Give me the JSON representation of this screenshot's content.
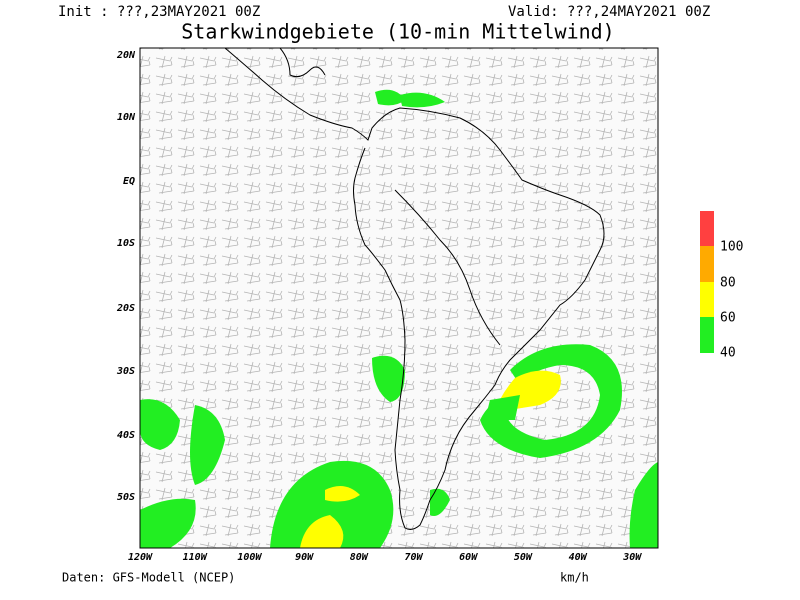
{
  "header": {
    "init": "Init : ???,23MAY2021 00Z",
    "valid": "Valid: ???,24MAY2021 00Z",
    "title": "Starkwindgebiete (10-min Mittelwind)"
  },
  "map": {
    "lat_labels": [
      "20N",
      "10N",
      "EQ",
      "10S",
      "20S",
      "30S",
      "40S",
      "50S"
    ],
    "lon_labels": [
      "120W",
      "110W",
      "100W",
      "90W",
      "80W",
      "70W",
      "60W",
      "50W",
      "40W",
      "30W"
    ]
  },
  "legend": {
    "labels": [
      100,
      80,
      60,
      40
    ]
  },
  "footer": {
    "source": "Daten: GFS-Modell (NCEP)",
    "unit": "km/h"
  }
}
